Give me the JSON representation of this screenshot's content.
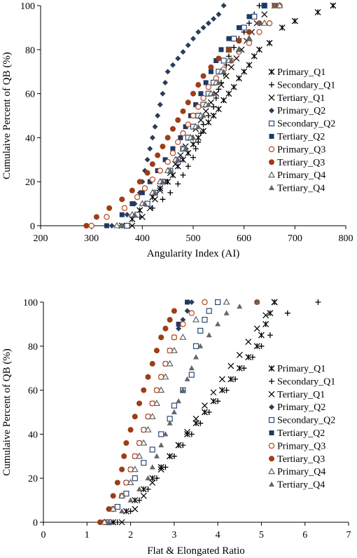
{
  "chart_data": [
    {
      "type": "scatter",
      "xlabel": "Angularity Index (AI)",
      "ylabel": "Cumulaive Percent of QB (%)",
      "xlim": [
        200,
        800
      ],
      "ylim": [
        0,
        100
      ],
      "xticks": [
        "200",
        "300",
        "400",
        "500",
        "600",
        "700",
        "800"
      ],
      "yticks": [
        "0",
        "20",
        "40",
        "60",
        "80",
        "100"
      ],
      "grid": false,
      "legend_position": "right",
      "series": [
        {
          "name": "Primary_Q1",
          "marker": "xstar",
          "color": "#000000",
          "x": [
            360,
            380,
            395,
            410,
            420,
            435,
            450,
            460,
            470,
            480,
            490,
            500,
            510,
            520,
            530,
            540,
            550,
            560,
            570,
            580,
            590,
            600,
            610,
            620,
            630,
            650,
            675,
            700,
            745,
            775
          ],
          "y": [
            0,
            3,
            7,
            10,
            13,
            17,
            20,
            23,
            27,
            30,
            33,
            37,
            40,
            43,
            47,
            50,
            53,
            57,
            60,
            63,
            67,
            70,
            73,
            77,
            80,
            83,
            90,
            93,
            97,
            100
          ]
        },
        {
          "name": "Secondary_Q1",
          "marker": "plus",
          "color": "#000000",
          "x": [
            370,
            395,
            420,
            440,
            455,
            470,
            480,
            490,
            500,
            505,
            510,
            515,
            520,
            530,
            540,
            545,
            550,
            555,
            560,
            565,
            570,
            580,
            590,
            600,
            610,
            620,
            630
          ],
          "y": [
            0,
            4,
            8,
            12,
            15,
            19,
            23,
            27,
            31,
            35,
            38,
            42,
            46,
            50,
            54,
            58,
            62,
            65,
            69,
            73,
            77,
            81,
            85,
            88,
            92,
            96,
            100
          ]
        },
        {
          "name": "Tertiary_Q1",
          "marker": "x",
          "color": "#000000",
          "x": [
            380,
            400,
            415,
            425,
            435,
            445,
            455,
            465,
            475,
            485,
            495,
            505,
            515,
            525,
            535,
            545,
            555,
            565,
            575,
            585,
            595,
            605,
            615,
            625,
            640,
            660
          ],
          "y": [
            0,
            4,
            8,
            12,
            16,
            20,
            24,
            28,
            32,
            36,
            40,
            44,
            48,
            52,
            56,
            60,
            64,
            68,
            72,
            76,
            80,
            84,
            88,
            92,
            96,
            100
          ]
        },
        {
          "name": "Primary_Q2",
          "marker": "diamond",
          "color": "#2b3d5c",
          "x": [
            340,
            370,
            385,
            395,
            400,
            405,
            410,
            415,
            420,
            425,
            430,
            435,
            440,
            445,
            450,
            460,
            470,
            480,
            490,
            500,
            510,
            520,
            530,
            540,
            550,
            560
          ],
          "y": [
            0,
            5,
            10,
            15,
            20,
            25,
            30,
            35,
            40,
            45,
            50,
            55,
            60,
            65,
            70,
            73,
            76,
            79,
            82,
            85,
            88,
            90,
            92,
            94,
            96,
            100
          ]
        },
        {
          "name": "Secondary_Q2",
          "marker": "square-open",
          "color": "#2b4a7a",
          "x": [
            370,
            390,
            410,
            425,
            440,
            455,
            470,
            480,
            490,
            500,
            510,
            520,
            530,
            540,
            550,
            560,
            570,
            580,
            600,
            620,
            640
          ],
          "y": [
            0,
            5,
            10,
            15,
            20,
            25,
            30,
            35,
            40,
            45,
            50,
            55,
            60,
            65,
            70,
            75,
            80,
            85,
            90,
            95,
            100
          ]
        },
        {
          "name": "Tertiary_Q2",
          "marker": "square",
          "color": "#1f3864",
          "x": [
            330,
            360,
            380,
            400,
            415,
            430,
            445,
            460,
            475,
            485,
            495,
            505,
            515,
            525,
            535,
            545,
            555,
            570,
            590,
            610,
            640
          ],
          "y": [
            0,
            5,
            10,
            15,
            20,
            25,
            30,
            35,
            40,
            45,
            50,
            55,
            60,
            65,
            70,
            75,
            80,
            85,
            90,
            95,
            100
          ]
        },
        {
          "name": "Primary_Q3",
          "marker": "circle-open",
          "color": "#b5471a",
          "x": [
            300,
            330,
            365,
            390,
            405,
            420,
            435,
            450,
            460,
            470,
            480,
            490,
            500,
            510,
            520,
            530,
            545,
            560,
            575,
            590,
            610,
            630,
            650,
            670
          ],
          "y": [
            0,
            4,
            8,
            13,
            17,
            21,
            25,
            29,
            33,
            38,
            42,
            46,
            50,
            54,
            58,
            63,
            67,
            71,
            75,
            79,
            83,
            88,
            92,
            100
          ]
        },
        {
          "name": "Tertiary_Q3",
          "marker": "circle",
          "color": "#9e3d15",
          "x": [
            290,
            310,
            335,
            360,
            380,
            395,
            410,
            420,
            430,
            440,
            450,
            460,
            470,
            480,
            490,
            500,
            510,
            520,
            535,
            550,
            570,
            590,
            610,
            630,
            660
          ],
          "y": [
            0,
            4,
            8,
            12,
            16,
            20,
            24,
            28,
            32,
            36,
            40,
            44,
            48,
            52,
            56,
            60,
            64,
            68,
            72,
            76,
            80,
            84,
            88,
            92,
            100
          ]
        },
        {
          "name": "Primary_Q4",
          "marker": "triangle-open",
          "color": "#555555",
          "x": [
            350,
            380,
            400,
            420,
            435,
            450,
            465,
            480,
            495,
            505,
            515,
            525,
            535,
            545,
            555,
            570,
            590,
            610,
            640,
            670
          ],
          "y": [
            0,
            5,
            10,
            15,
            20,
            25,
            30,
            35,
            40,
            45,
            50,
            55,
            60,
            65,
            70,
            75,
            80,
            85,
            92,
            100
          ]
        },
        {
          "name": "Tertiary_Q4",
          "marker": "triangle",
          "color": "#666666",
          "x": [
            360,
            385,
            405,
            425,
            440,
            455,
            470,
            485,
            500,
            510,
            520,
            530,
            540,
            550,
            560,
            575,
            590,
            610,
            630,
            660
          ],
          "y": [
            0,
            5,
            10,
            15,
            20,
            25,
            30,
            35,
            40,
            45,
            50,
            55,
            60,
            65,
            70,
            75,
            80,
            85,
            92,
            100
          ]
        }
      ]
    },
    {
      "type": "scatter",
      "xlabel": "Flat & Elongated Ratio",
      "ylabel": "Cumulaive Percent of QB (%)",
      "xlim": [
        0,
        7
      ],
      "ylim": [
        0,
        100
      ],
      "xticks": [
        "0",
        "1",
        "2",
        "3",
        "4",
        "5",
        "6",
        "7"
      ],
      "yticks": [
        "0",
        "20",
        "40",
        "60",
        "80",
        "100"
      ],
      "grid": false,
      "legend_position": "right",
      "series": [
        {
          "name": "Primary_Q1",
          "marker": "xstar",
          "color": "#000000",
          "x": [
            1.6,
            1.9,
            2.1,
            2.3,
            2.5,
            2.7,
            2.9,
            3.1,
            3.3,
            3.5,
            3.7,
            3.9,
            4.1,
            4.3,
            4.5,
            4.7,
            4.9,
            5.0,
            5.1,
            5.2,
            5.3
          ],
          "y": [
            0,
            5,
            10,
            15,
            20,
            25,
            30,
            35,
            40,
            45,
            50,
            55,
            60,
            65,
            70,
            75,
            80,
            85,
            90,
            95,
            100
          ]
        },
        {
          "name": "Secondary_Q1",
          "marker": "plus",
          "color": "#000000",
          "x": [
            1.7,
            2.0,
            2.2,
            2.4,
            2.6,
            2.8,
            3.0,
            3.2,
            3.4,
            3.6,
            3.8,
            4.0,
            4.2,
            4.4,
            4.6,
            4.8,
            5.0,
            5.2,
            5.6,
            6.3
          ],
          "y": [
            0,
            5,
            10,
            15,
            20,
            25,
            30,
            35,
            40,
            45,
            50,
            55,
            60,
            65,
            70,
            75,
            80,
            85,
            95,
            100
          ]
        },
        {
          "name": "Tertiary_Q1",
          "marker": "x",
          "color": "#000000",
          "x": [
            1.8,
            2.1,
            2.3,
            2.5,
            2.7,
            2.9,
            3.1,
            3.3,
            3.5,
            3.7,
            3.9,
            4.1,
            4.3,
            4.5,
            4.7,
            4.9,
            5.1,
            5.3
          ],
          "y": [
            0,
            6,
            12,
            18,
            24,
            30,
            35,
            41,
            47,
            53,
            59,
            65,
            71,
            76,
            82,
            88,
            94,
            100
          ]
        },
        {
          "name": "Primary_Q2",
          "marker": "diamond",
          "color": "#2b3d5c",
          "x": [
            1.4,
            1.6,
            1.8,
            1.9,
            2.0,
            2.1,
            2.2,
            2.3,
            2.4,
            2.5,
            2.6,
            2.7,
            2.8,
            2.9,
            3.0,
            3.1,
            3.2,
            3.3,
            3.4
          ],
          "y": [
            0,
            6,
            12,
            18,
            24,
            30,
            36,
            42,
            48,
            54,
            60,
            66,
            72,
            78,
            84,
            88,
            92,
            96,
            100
          ]
        },
        {
          "name": "Secondary_Q2",
          "marker": "square-open",
          "color": "#2b4a7a",
          "x": [
            1.5,
            1.7,
            1.9,
            2.1,
            2.3,
            2.5,
            2.7,
            2.9,
            3.0,
            3.2,
            3.4,
            3.5,
            3.6,
            3.7,
            3.8,
            4.0
          ],
          "y": [
            0,
            7,
            13,
            20,
            27,
            33,
            40,
            47,
            53,
            60,
            67,
            80,
            87,
            92,
            96,
            100
          ]
        },
        {
          "name": "Tertiary_Q2",
          "marker": "square",
          "color": "#1f3864",
          "x": [
            1.4,
            1.6,
            1.8,
            1.9,
            2.0,
            2.1,
            2.2,
            2.3,
            2.4,
            2.5,
            2.6,
            2.7,
            2.8,
            2.9,
            3.0,
            3.1,
            3.3
          ],
          "y": [
            0,
            6,
            12,
            18,
            24,
            30,
            36,
            42,
            48,
            54,
            60,
            66,
            72,
            78,
            84,
            90,
            100
          ]
        },
        {
          "name": "Primary_Q3",
          "marker": "circle-open",
          "color": "#b5471a",
          "x": [
            1.4,
            1.6,
            1.8,
            1.9,
            2.0,
            2.1,
            2.2,
            2.3,
            2.4,
            2.5,
            2.6,
            2.7,
            2.8,
            2.9,
            3.0,
            3.2,
            3.4,
            3.7
          ],
          "y": [
            0,
            6,
            12,
            18,
            24,
            30,
            36,
            42,
            48,
            54,
            60,
            66,
            72,
            78,
            84,
            90,
            95,
            100
          ]
        },
        {
          "name": "Tertiary_Q3",
          "marker": "circle",
          "color": "#9e3d15",
          "x": [
            1.3,
            1.5,
            1.6,
            1.7,
            1.8,
            1.85,
            1.9,
            2.0,
            2.1,
            2.2,
            2.3,
            2.4,
            2.5,
            2.6,
            2.7,
            2.8,
            2.9,
            3.0,
            4.9
          ],
          "y": [
            0,
            6,
            12,
            18,
            24,
            30,
            36,
            42,
            48,
            54,
            60,
            66,
            72,
            78,
            84,
            88,
            92,
            96,
            100
          ]
        },
        {
          "name": "Primary_Q4",
          "marker": "triangle-open",
          "color": "#555555",
          "x": [
            1.4,
            1.6,
            1.8,
            2.0,
            2.1,
            2.2,
            2.3,
            2.4,
            2.5,
            2.6,
            2.7,
            2.8,
            2.9,
            3.0,
            3.2,
            3.5,
            4.2
          ],
          "y": [
            0,
            6,
            12,
            18,
            24,
            30,
            36,
            42,
            48,
            54,
            60,
            66,
            72,
            78,
            84,
            92,
            100
          ]
        },
        {
          "name": "Tertiary_Q4",
          "marker": "triangle",
          "color": "#666666",
          "x": [
            1.5,
            1.8,
            2.0,
            2.2,
            2.4,
            2.5,
            2.6,
            2.7,
            2.8,
            2.9,
            3.0,
            3.1,
            3.2,
            3.3,
            3.4,
            3.5,
            3.6,
            3.8,
            4.0,
            4.2,
            4.5,
            4.9
          ],
          "y": [
            0,
            5,
            10,
            15,
            20,
            25,
            30,
            35,
            40,
            45,
            50,
            55,
            60,
            65,
            70,
            75,
            80,
            85,
            90,
            95,
            98,
            100
          ]
        }
      ]
    }
  ]
}
